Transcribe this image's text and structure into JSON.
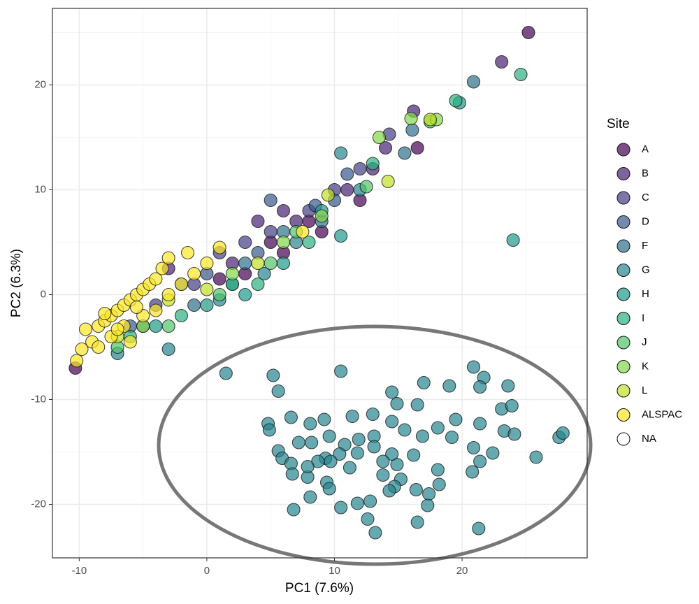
{
  "chart_data": {
    "type": "scatter",
    "x_label": "PC1 (7.6%)",
    "y_label": "PC2 (6.3%)",
    "xlim": [
      -12.1,
      29.8
    ],
    "ylim": [
      -25.1,
      27.3
    ],
    "xticks": [
      -10,
      0,
      10,
      20
    ],
    "yticks": [
      -20,
      -10,
      0,
      10,
      20
    ],
    "x_minor_grid": [
      -5,
      5,
      15,
      25
    ],
    "y_minor_grid": [
      -15,
      -5,
      5,
      15,
      25
    ],
    "grid": true,
    "legend_title": "Site",
    "legend_position": "right",
    "series": [
      {
        "name": "A",
        "color": "#440154",
        "x": [
          -10.3,
          25.2,
          3,
          5,
          8,
          12,
          1,
          6,
          16.5,
          9
        ],
        "y": [
          -7,
          25,
          2,
          5,
          7,
          9,
          1.5,
          4,
          14,
          6
        ]
      },
      {
        "name": "B",
        "color": "#482173",
        "x": [
          23.1,
          16.2,
          4,
          6,
          11,
          13,
          2,
          -3,
          7,
          14
        ],
        "y": [
          22.2,
          17.5,
          7,
          8,
          10,
          12,
          3,
          2.5,
          7,
          14
        ]
      },
      {
        "name": "C",
        "color": "#433E85",
        "x": [
          14.3,
          10,
          5,
          3,
          -1,
          8,
          12,
          -4,
          1
        ],
        "y": [
          15.3,
          10,
          6,
          5,
          1,
          8,
          12,
          -1,
          4
        ]
      },
      {
        "name": "D",
        "color": "#38598C",
        "x": [
          5,
          8.5,
          0,
          -2,
          10,
          4,
          11,
          -6
        ],
        "y": [
          9,
          8.5,
          2,
          1,
          9,
          4,
          11.5,
          -3
        ]
      },
      {
        "name": "F",
        "color": "#2D708E",
        "x": [
          20.9,
          16.1,
          15.5,
          2,
          6,
          9,
          -1,
          3,
          -5
        ],
        "y": [
          20.3,
          15.7,
          13.5,
          1,
          6,
          7,
          -1,
          3,
          -3
        ]
      },
      {
        "name": "G",
        "color": "#25858E",
        "x": [
          10.5,
          4.5,
          -3,
          -7,
          7,
          1,
          12,
          1.5,
          5.2,
          10.5,
          5.6,
          14.5,
          17,
          19,
          20.9,
          21.7,
          21.4,
          23.6,
          4.8,
          4.9,
          6.6,
          8.1,
          9.2,
          11.4,
          13,
          14.9,
          16.5,
          23.1,
          23.9,
          19.5,
          21.4,
          23.3,
          24.1,
          27.6,
          27.9,
          25.8,
          22.4,
          21.4,
          20.9,
          19.2,
          18.1,
          16.9,
          15.5,
          14.5,
          13.1,
          11.9,
          10.8,
          9.6,
          8.2,
          7.2,
          5.6,
          5.9,
          6.6,
          6.7,
          7.9,
          9.4,
          9.6,
          8.1,
          6.8,
          10.5,
          11.8,
          12.8,
          12.6,
          13.2,
          16.4,
          17.4,
          17.3,
          16.5,
          21.3,
          20.8,
          18.1,
          18.2,
          16.2,
          14.9,
          15.2,
          13.8,
          11.2,
          9.3,
          10.4,
          11.8,
          13.1,
          14.5,
          13.8,
          14.7,
          14.3,
          8.7,
          9.7,
          7.9
        ],
        "y": [
          13.5,
          2,
          -5.2,
          -5.6,
          5,
          -0.5,
          10,
          -7.5,
          -7.7,
          -7.3,
          -9.2,
          -9.3,
          -8.4,
          -8.7,
          -6.9,
          -7.9,
          -8.8,
          -8.7,
          -12.3,
          -12.9,
          -11.7,
          -12.3,
          -11.9,
          -11.6,
          -11.4,
          -10.4,
          -10.5,
          -10.9,
          -10.6,
          -11.9,
          -12.3,
          -13,
          -13.3,
          -13.6,
          -13.2,
          -15.5,
          -15.1,
          -15.9,
          -14.6,
          -13.6,
          -12.7,
          -13.5,
          -12.9,
          -12.1,
          -13.5,
          -13.8,
          -14.3,
          -13.5,
          -14.1,
          -14.1,
          -14.9,
          -15.6,
          -16.1,
          -17.1,
          -17.4,
          -17.9,
          -18.5,
          -19.3,
          -20.5,
          -20.3,
          -19.9,
          -19.7,
          -21.4,
          -22.7,
          -18.6,
          -19,
          -20.1,
          -21.7,
          -22.3,
          -16.9,
          -16.7,
          -18.1,
          -15.3,
          -16.2,
          -17.6,
          -17.2,
          -16.5,
          -15.6,
          -15.2,
          -15.1,
          -14.5,
          -15.2,
          -15.9,
          -18.3,
          -18.7,
          -15.9,
          -15.9,
          -16.4
        ]
      },
      {
        "name": "H",
        "color": "#1E9B8A",
        "x": [
          24,
          10.5,
          19.8,
          6,
          3,
          -4,
          9,
          0
        ],
        "y": [
          5.2,
          5.6,
          18.3,
          3,
          0,
          -3,
          8,
          -1
        ]
      },
      {
        "name": "I",
        "color": "#2BB07F",
        "x": [
          24.6,
          19.5,
          13,
          8,
          4,
          -2,
          -6,
          2
        ],
        "y": [
          21,
          18.5,
          12.5,
          5,
          1,
          -2,
          -4,
          1
        ]
      },
      {
        "name": "J",
        "color": "#51C56A",
        "x": [
          17.5,
          12.5,
          5,
          -3,
          1,
          7,
          -7
        ],
        "y": [
          16.5,
          10.3,
          3,
          -3,
          0,
          6,
          -5
        ]
      },
      {
        "name": "K",
        "color": "#85D54A",
        "x": [
          16,
          18,
          13.5,
          9,
          -5,
          2,
          6
        ],
        "y": [
          16.8,
          16.7,
          15,
          7.5,
          -3,
          2,
          5
        ]
      },
      {
        "name": "L",
        "color": "#C2DF23",
        "x": [
          17.5,
          14.2,
          9.5,
          -3,
          -7,
          0,
          4
        ],
        "y": [
          16.7,
          10.8,
          9.5,
          -0.5,
          -4,
          0.5,
          3
        ]
      },
      {
        "name": "ALSPAC",
        "color": "#FDE725",
        "x": [
          -10.2,
          -9.8,
          -9.5,
          -9,
          -8.5,
          -8,
          -7.5,
          -7,
          -6.5,
          -6,
          -5.5,
          -5,
          -4.5,
          -4,
          -3.5,
          -3,
          -1.5,
          -8.5,
          -7.5,
          -6.5,
          -6,
          -5,
          -4,
          -3,
          -2,
          -1,
          0,
          1,
          7.5,
          -8,
          -7,
          -5.5
        ],
        "y": [
          -6.3,
          -5.2,
          -3.3,
          -4.5,
          -3,
          -2.5,
          -2,
          -1.5,
          -1,
          -0.5,
          0,
          0.5,
          1,
          1.5,
          2.5,
          3.5,
          4,
          -5,
          -4,
          -3,
          -4.5,
          -2,
          -1.5,
          0,
          1,
          2,
          3,
          4.5,
          6,
          -1.8,
          -3.3,
          -1.2
        ]
      },
      {
        "name": "NA",
        "color": "#ffffff",
        "x": [],
        "y": []
      }
    ]
  }
}
